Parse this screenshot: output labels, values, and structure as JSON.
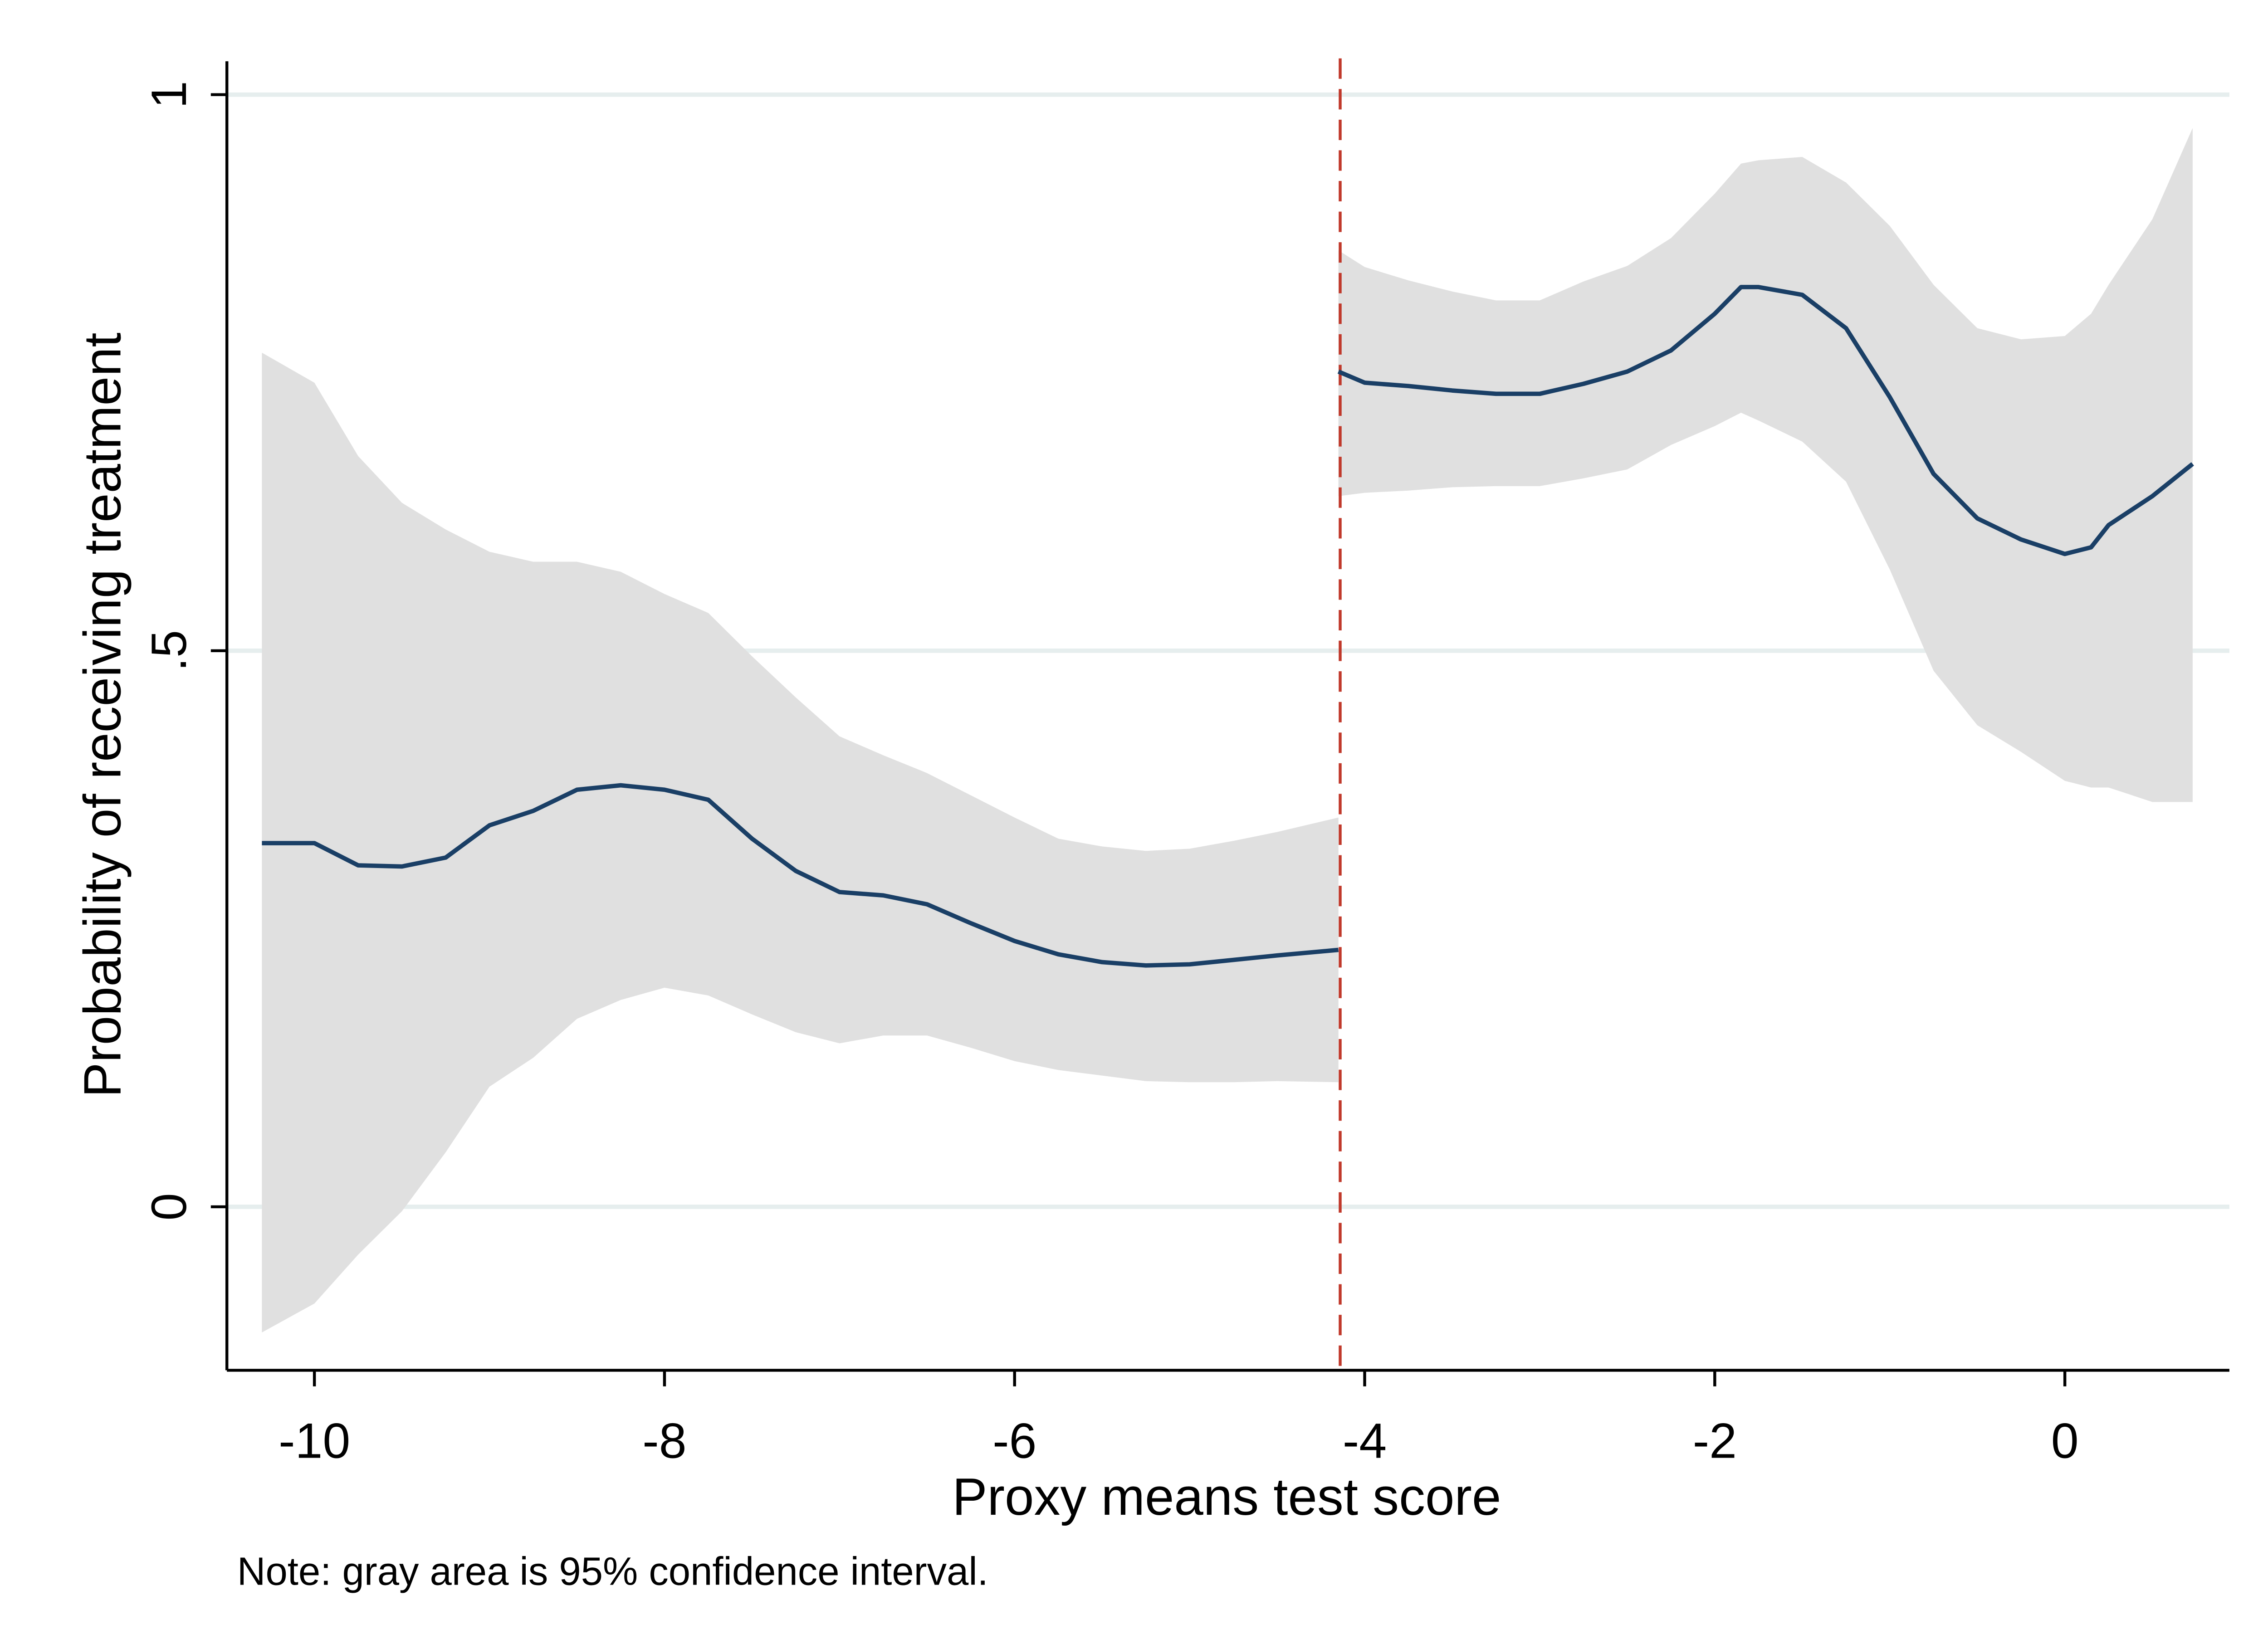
{
  "chart_data": {
    "type": "band-line",
    "xlabel": "Proxy means test score",
    "ylabel": "Probability of receiving treatment",
    "note": "Note: gray area is 95% confidence interval.",
    "xlim": [
      -10.5,
      0.94
    ],
    "ylim": [
      -0.147,
      1.03
    ],
    "xticks": [
      -10,
      -8,
      -6,
      -4,
      -2,
      0
    ],
    "yticks": [
      0,
      {
        "value": 0.5,
        "label": ".5"
      },
      1
    ],
    "grid": true,
    "line_color": "#1a3f66",
    "band_color": "#e0e0e0",
    "cutoff": -4.14,
    "cutoff_color": "#c0392b",
    "segments": [
      {
        "x": [
          -10.3,
          -10,
          -9.75,
          -9.5,
          -9.25,
          -9,
          -8.75,
          -8.5,
          -8.25,
          -8,
          -7.75,
          -7.5,
          -7.25,
          -7,
          -6.75,
          -6.5,
          -6.25,
          -6,
          -5.75,
          -5.5,
          -5.25,
          -5,
          -4.75,
          -4.5,
          -4.15
        ],
        "values": [
          0.327,
          0.327,
          0.307,
          0.306,
          0.314,
          0.343,
          0.356,
          0.375,
          0.379,
          0.375,
          0.366,
          0.331,
          0.302,
          0.283,
          0.28,
          0.272,
          0.255,
          0.239,
          0.227,
          0.22,
          0.217,
          0.218,
          0.222,
          0.226,
          0.231
        ],
        "upper": [
          0.768,
          0.741,
          0.675,
          0.633,
          0.609,
          0.589,
          0.58,
          0.58,
          0.571,
          0.551,
          0.534,
          0.495,
          0.458,
          0.423,
          0.406,
          0.39,
          0.37,
          0.35,
          0.331,
          0.324,
          0.32,
          0.322,
          0.329,
          0.337,
          0.35
        ],
        "lower": [
          -0.113,
          -0.087,
          -0.043,
          -0.004,
          0.049,
          0.108,
          0.134,
          0.169,
          0.186,
          0.197,
          0.19,
          0.173,
          0.157,
          0.147,
          0.154,
          0.154,
          0.143,
          0.131,
          0.123,
          0.118,
          0.113,
          0.112,
          0.112,
          0.113,
          0.112
        ]
      },
      {
        "x": [
          -4.15,
          -4,
          -3.75,
          -3.5,
          -3.25,
          -3,
          -2.75,
          -2.5,
          -2.25,
          -2,
          -1.85,
          -1.75,
          -1.5,
          -1.25,
          -1,
          -0.75,
          -0.5,
          -0.25,
          0,
          0.15,
          0.25,
          0.5,
          0.73
        ],
        "values": [
          0.751,
          0.741,
          0.738,
          0.734,
          0.731,
          0.731,
          0.74,
          0.751,
          0.77,
          0.803,
          0.827,
          0.827,
          0.82,
          0.79,
          0.728,
          0.659,
          0.619,
          0.6,
          0.587,
          0.593,
          0.613,
          0.639,
          0.668
        ],
        "upper": [
          0.86,
          0.845,
          0.833,
          0.823,
          0.815,
          0.815,
          0.832,
          0.846,
          0.871,
          0.911,
          0.938,
          0.941,
          0.944,
          0.921,
          0.882,
          0.829,
          0.79,
          0.78,
          0.783,
          0.803,
          0.829,
          0.888,
          0.97
        ],
        "lower": [
          0.639,
          0.642,
          0.644,
          0.647,
          0.648,
          0.648,
          0.655,
          0.663,
          0.685,
          0.702,
          0.714,
          0.707,
          0.688,
          0.652,
          0.573,
          0.482,
          0.433,
          0.409,
          0.383,
          0.377,
          0.377,
          0.364,
          0.364
        ]
      }
    ]
  }
}
